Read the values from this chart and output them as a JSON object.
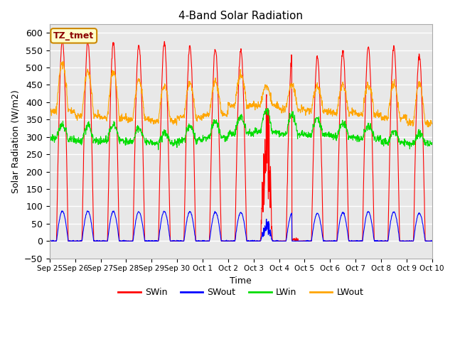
{
  "title": "4-Band Solar Radiation",
  "ylabel": "Solar Radiation (W/m2)",
  "xlabel": "Time",
  "annotation": "TZ_tmet",
  "ylim": [
    -50,
    625
  ],
  "xlim": [
    0,
    15
  ],
  "xtick_labels": [
    "Sep 25",
    "Sep 26",
    "Sep 27",
    "Sep 28",
    "Sep 29",
    "Sep 30",
    "Oct 1",
    "Oct 2",
    "Oct 3",
    "Oct 4",
    "Oct 5",
    "Oct 6",
    "Oct 7",
    "Oct 8",
    "Oct 9",
    "Oct 10"
  ],
  "ytick_vals": [
    -50,
    0,
    50,
    100,
    150,
    200,
    250,
    300,
    350,
    400,
    450,
    500,
    550,
    600
  ],
  "colors": {
    "SWin": "#ff0000",
    "SWout": "#0000ff",
    "LWin": "#00dd00",
    "LWout": "#ffa500"
  },
  "bg_color": "#e8e8e8",
  "n_days": 15,
  "pts_per_day": 96,
  "sw_peaks": [
    578,
    573,
    572,
    565,
    574,
    560,
    555,
    550,
    450,
    530,
    530,
    548,
    560,
    560,
    535
  ],
  "lw_out_night": [
    375,
    360,
    355,
    350,
    345,
    355,
    365,
    390,
    390,
    380,
    375,
    370,
    365,
    355,
    340
  ],
  "lw_out_day_extra": [
    140,
    130,
    135,
    115,
    105,
    100,
    95,
    90,
    55,
    70,
    70,
    75,
    85,
    100,
    110
  ],
  "lw_in_base": [
    295,
    290,
    290,
    285,
    282,
    290,
    298,
    310,
    315,
    308,
    305,
    300,
    295,
    285,
    280
  ],
  "lw_in_day_extra": [
    38,
    40,
    45,
    38,
    30,
    40,
    45,
    50,
    60,
    55,
    45,
    40,
    35,
    30,
    28
  ],
  "sw_out_ratio": 0.15,
  "day_start": 0.27,
  "day_end": 0.73,
  "figsize": [
    6.4,
    4.8
  ],
  "dpi": 100
}
